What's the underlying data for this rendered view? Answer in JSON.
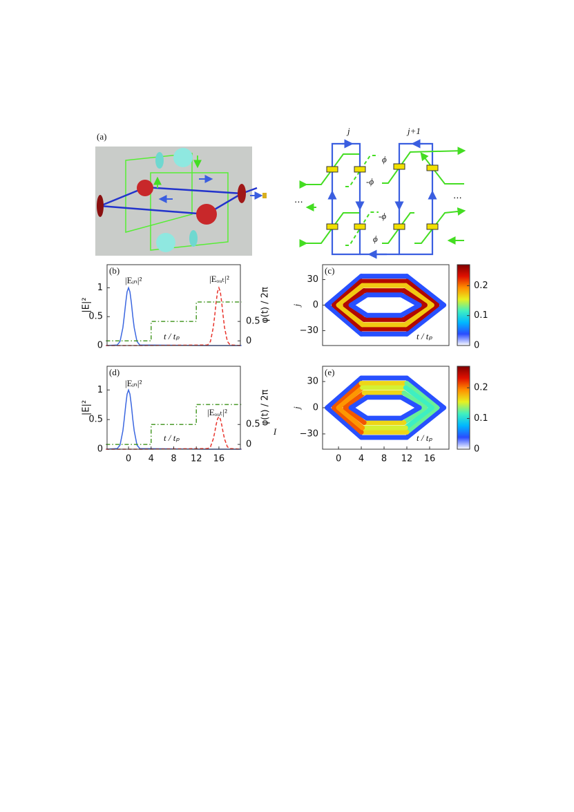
{
  "figure_a": {
    "label": "(a)",
    "col_labels": [
      "j",
      "j+1"
    ],
    "phase_labels": [
      "ϕ",
      "-ϕ",
      "-ϕ",
      "ϕ"
    ],
    "ellipses": [
      "⋯",
      "⋯"
    ]
  },
  "chart_data": [
    {
      "type": "line",
      "panel_label": "(b)",
      "ylabel": "|E|²",
      "y2label": "φ(t) / 2π",
      "annotations": [
        "|Eᵢₙ|²",
        "|Eₒᵤₜ|²",
        "t / tₚ"
      ],
      "x": [
        -4,
        -2,
        -1.5,
        -1,
        -0.75,
        -0.5,
        -0.25,
        0,
        0.25,
        0.5,
        0.75,
        1,
        1.5,
        2,
        14,
        14.5,
        15,
        15.25,
        15.5,
        15.75,
        16,
        16.25,
        16.5,
        16.75,
        17,
        17.5,
        18,
        20
      ],
      "xlim": [
        -3.8,
        19.8
      ],
      "ylim": [
        0,
        1.4
      ],
      "yticks": [
        0,
        0.5,
        1
      ],
      "y2lim": [
        -0.12,
        1.96
      ],
      "y2ticks": [
        0,
        0.5
      ],
      "series": [
        {
          "name": "|Eᵢₙ|²",
          "color": "#3a66e0",
          "style": "solid",
          "values": [
            0,
            0.01,
            0.07,
            0.31,
            0.51,
            0.74,
            0.93,
            1,
            0.93,
            0.74,
            0.51,
            0.31,
            0.07,
            0.01,
            0,
            0,
            0,
            0,
            0,
            0,
            0,
            0,
            0,
            0,
            0,
            0,
            0,
            0
          ]
        },
        {
          "name": "|Eₒᵤₜ|²",
          "color": "#e8322a",
          "style": "dashed",
          "values": [
            0,
            0,
            0,
            0,
            0,
            0,
            0,
            0,
            0,
            0,
            0,
            0,
            0,
            0,
            0.01,
            0.07,
            0.31,
            0.51,
            0.74,
            0.93,
            1,
            0.93,
            0.74,
            0.51,
            0.31,
            0.07,
            0.01,
            0
          ]
        },
        {
          "name": "φ(t) / 2π",
          "color": "#4a9a2a",
          "style": "dashdot",
          "axis": "y2",
          "x": [
            -4,
            4,
            4,
            12,
            12,
            20
          ],
          "values": [
            0,
            0,
            0.5,
            0.5,
            1,
            1
          ]
        }
      ]
    },
    {
      "type": "heatmap",
      "panel_label": "(c)",
      "ylabel": "j",
      "annotations": [
        "t / tₚ"
      ],
      "xlim": [
        -2.8,
        19.4
      ],
      "ylim": [
        -47.5,
        47.5
      ],
      "yticks": [
        30,
        0,
        {
          "value": -30,
          "label": "−30"
        }
      ],
      "colormap": [
        "#ffffff",
        "#2a4cff",
        "#00b8ff",
        "#40f0c0",
        "#e8f020",
        "#ff9000",
        "#e01000",
        "#800000"
      ],
      "clim": [
        0,
        0.27
      ],
      "cticks": [
        0,
        0.1,
        0.2
      ],
      "rings": [
        {
          "x": [
            -2,
            4,
            12,
            18.5,
            12,
            4,
            -2
          ],
          "y": [
            0,
            34,
            34,
            0,
            -34,
            -34,
            0
          ],
          "values": [
            0.04,
            0.04,
            0.04,
            0.04,
            0.04,
            0.04,
            0.04
          ]
        },
        {
          "x": [
            -0.8,
            4,
            12,
            17.3,
            12,
            4,
            -0.8
          ],
          "y": [
            0,
            28,
            28,
            0,
            -28,
            -28,
            0
          ],
          "values": [
            0.25,
            0.25,
            0.25,
            0.25,
            0.25,
            0.25,
            0.25
          ]
        },
        {
          "x": [
            0,
            4.2,
            11.8,
            16.4,
            11.8,
            4.2,
            0
          ],
          "y": [
            0,
            23,
            23,
            0,
            -23,
            -23,
            0
          ],
          "values": [
            0.17,
            0.17,
            0.17,
            0.17,
            0.17,
            0.17,
            0.17
          ]
        },
        {
          "x": [
            1.2,
            4.5,
            11.5,
            15.2,
            11.5,
            4.5,
            1.2
          ],
          "y": [
            0,
            17,
            17,
            0,
            -17,
            -17,
            0
          ],
          "values": [
            0.25,
            0.25,
            0.25,
            0.25,
            0.25,
            0.25,
            0.25
          ]
        },
        {
          "x": [
            2.2,
            5,
            11,
            14.2,
            11,
            5,
            2.2
          ],
          "y": [
            0,
            12,
            12,
            0,
            -12,
            -12,
            0
          ],
          "values": [
            0.04,
            0.04,
            0.04,
            0.04,
            0.04,
            0.04,
            0.04
          ]
        }
      ]
    },
    {
      "type": "line",
      "panel_label": "(d)",
      "ylabel": "|E|²",
      "y2label": "φ(t) / 2π",
      "annotations": [
        "|Eᵢₙ|²",
        "|Eₒᵤₜ|²",
        "t / tₚ",
        "I"
      ],
      "x": [
        -4,
        -2,
        -1.5,
        -1,
        -0.75,
        -0.5,
        -0.25,
        0,
        0.25,
        0.5,
        0.75,
        1,
        1.5,
        2,
        14,
        14.5,
        15,
        15.25,
        15.5,
        15.75,
        16,
        16.25,
        16.5,
        16.75,
        17,
        17.5,
        18,
        20
      ],
      "xlim": [
        -3.8,
        19.8
      ],
      "xticks": [
        0,
        4,
        8,
        12,
        16
      ],
      "ylim": [
        0,
        1.4
      ],
      "yticks": [
        0,
        0.5,
        1
      ],
      "y2lim": [
        -0.12,
        1.96
      ],
      "y2ticks": [
        0,
        0.5
      ],
      "series": [
        {
          "name": "|Eᵢₙ|²",
          "color": "#3a66e0",
          "style": "solid",
          "values": [
            0,
            0.01,
            0.07,
            0.31,
            0.51,
            0.74,
            0.93,
            1,
            0.93,
            0.74,
            0.51,
            0.31,
            0.07,
            0.01,
            0,
            0,
            0,
            0,
            0,
            0,
            0,
            0,
            0,
            0,
            0,
            0,
            0,
            0
          ]
        },
        {
          "name": "|Eₒᵤₜ|²",
          "color": "#e8322a",
          "style": "dashed",
          "values": [
            0,
            0,
            0,
            0,
            0,
            0,
            0,
            0,
            0,
            0,
            0,
            0,
            0,
            0,
            0.01,
            0.04,
            0.17,
            0.28,
            0.41,
            0.51,
            0.55,
            0.51,
            0.41,
            0.28,
            0.17,
            0.04,
            0.01,
            0
          ]
        },
        {
          "name": "φ(t) / 2π",
          "color": "#4a9a2a",
          "style": "dashdot",
          "axis": "y2",
          "x": [
            -4,
            4,
            4,
            12,
            12,
            20
          ],
          "values": [
            0,
            0,
            0.5,
            0.5,
            1,
            1
          ]
        }
      ]
    },
    {
      "type": "heatmap",
      "panel_label": "(e)",
      "ylabel": "j",
      "annotations": [
        "t / tₚ"
      ],
      "xlim": [
        -2.8,
        19.4
      ],
      "xticks": [
        0,
        4,
        8,
        12,
        16
      ],
      "ylim": [
        -47.5,
        47.5
      ],
      "yticks": [
        30,
        0,
        {
          "value": -30,
          "label": "−30"
        }
      ],
      "colormap": [
        "#ffffff",
        "#2a4cff",
        "#00b8ff",
        "#40f0c0",
        "#e8f020",
        "#ff9000",
        "#e01000",
        "#800000"
      ],
      "clim": [
        0,
        0.27
      ],
      "cticks": [
        0,
        0.1,
        0.2
      ],
      "rings": [
        {
          "x": [
            -2,
            4,
            12,
            18.5,
            12,
            4,
            -2
          ],
          "y": [
            0,
            34,
            34,
            0,
            -34,
            -34,
            0
          ],
          "values": [
            0.04,
            0.04,
            0.04,
            0.04,
            0.04,
            0.04,
            0.04
          ]
        },
        {
          "x": [
            -0.8,
            4,
            12,
            17.3,
            12,
            4,
            -0.8
          ],
          "y": [
            0,
            28,
            28,
            0,
            -28,
            -28,
            0
          ],
          "values": [
            0.22,
            0.2,
            0.13,
            0.12,
            0.13,
            0.2,
            0.22
          ]
        },
        {
          "x": [
            0,
            4.2,
            11.8,
            16.4,
            11.8,
            4.2,
            0
          ],
          "y": [
            0,
            23,
            23,
            0,
            -23,
            -23,
            0
          ],
          "values": [
            0.2,
            0.18,
            0.12,
            0.11,
            0.12,
            0.18,
            0.2
          ]
        },
        {
          "x": [
            1.2,
            4.5,
            11.5,
            15.2,
            11.5,
            4.5,
            1.2
          ],
          "y": [
            0,
            17,
            17,
            0,
            -17,
            -17,
            0
          ],
          "values": [
            0.22,
            0.2,
            0.13,
            0.12,
            0.13,
            0.2,
            0.22
          ]
        },
        {
          "x": [
            2.2,
            5,
            11,
            14.2,
            11,
            5,
            2.2
          ],
          "y": [
            0,
            12,
            12,
            0,
            -12,
            -12,
            0
          ],
          "values": [
            0.04,
            0.04,
            0.04,
            0.04,
            0.04,
            0.04,
            0.04
          ]
        }
      ]
    }
  ]
}
